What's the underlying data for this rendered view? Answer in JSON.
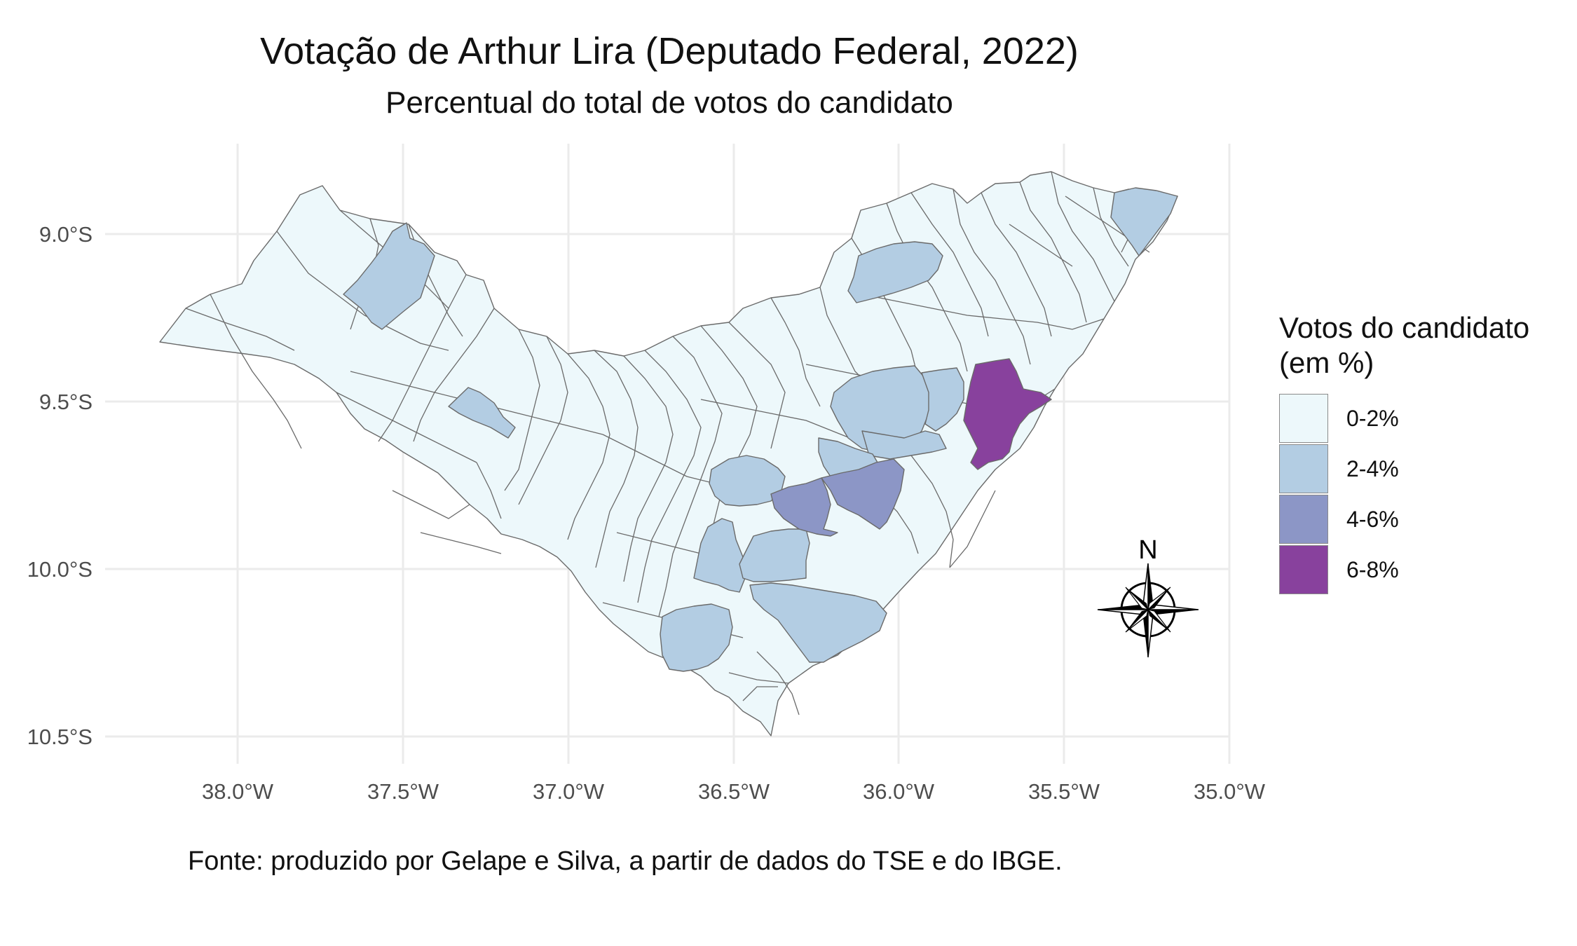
{
  "title": "Votação de Arthur Lira (Deputado Federal, 2022)",
  "subtitle": "Percentual do total de votos do candidato",
  "caption": "Fonte: produzido por Gelape e Silva, a partir de dados do TSE e do IBGE.",
  "axes": {
    "x_ticks": [
      "38.0°W",
      "37.5°W",
      "37.0°W",
      "36.5°W",
      "36.0°W",
      "35.5°W",
      "35.0°W"
    ],
    "y_ticks": [
      "9.0°S",
      "9.5°S",
      "10.0°S",
      "10.5°S"
    ],
    "lon_range": [
      -38.4,
      -35.0
    ],
    "lat_range": [
      -10.55,
      -8.75
    ]
  },
  "legend": {
    "title_line1": "Votos do candidato",
    "title_line2": "(em %)",
    "items": [
      {
        "label": "0-2%",
        "color": "#edf8fb"
      },
      {
        "label": "2-4%",
        "color": "#b3cde3"
      },
      {
        "label": "4-6%",
        "color": "#8c96c6"
      },
      {
        "label": "6-8%",
        "color": "#88419d"
      }
    ]
  },
  "north_arrow": {
    "label": "N"
  },
  "colors": {
    "c0": "#edf8fb",
    "c1": "#b3cde3",
    "c2": "#8c96c6",
    "c3": "#88419d",
    "border": "#6a6a6a",
    "grid": "#ebebeb"
  }
}
